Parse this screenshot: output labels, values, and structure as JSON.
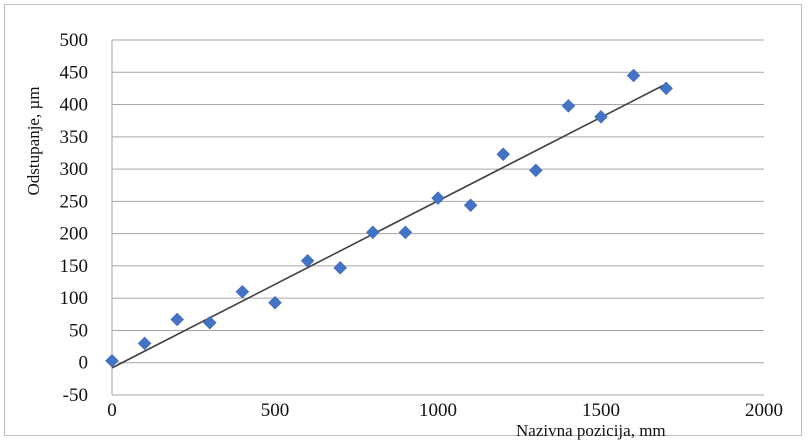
{
  "chart_data": {
    "type": "scatter",
    "title": "",
    "xlabel": "Nazivna pozicija, mm",
    "ylabel": "Odstupanje, µm",
    "xlim": [
      0,
      2000
    ],
    "ylim": [
      -50,
      500
    ],
    "xticks": [
      0,
      500,
      1000,
      1500,
      2000
    ],
    "yticks": [
      -50,
      0,
      50,
      100,
      150,
      200,
      250,
      300,
      350,
      400,
      450,
      500
    ],
    "grid": "horizontal",
    "legend": "none",
    "colors": {
      "marker": "#4472c4",
      "trendline": "#404040",
      "grid": "#a6a6a6"
    },
    "series": [
      {
        "marker": "diamond",
        "x": [
          0,
          100,
          200,
          300,
          400,
          500,
          600,
          700,
          800,
          900,
          1000,
          1100,
          1200,
          1300,
          1400,
          1500,
          1600,
          1700
        ],
        "y": [
          3,
          30,
          67,
          62,
          110,
          93,
          158,
          147,
          202,
          202,
          255,
          244,
          323,
          298,
          398,
          381,
          445,
          425
        ]
      }
    ],
    "trendline": {
      "type": "linear",
      "x": [
        0,
        1700
      ],
      "y": [
        -8,
        432
      ]
    }
  }
}
